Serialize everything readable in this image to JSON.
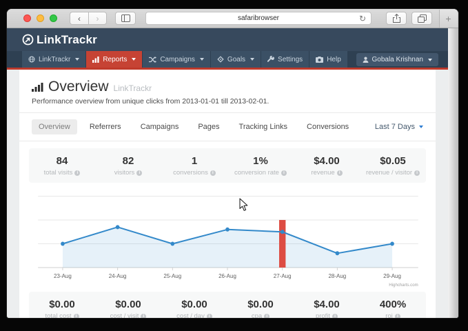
{
  "colors": {
    "nav-bg": "#37495d",
    "menu-bg": "#2e4052",
    "menu-item-bg": "#3b5065",
    "active-red": "#c64334",
    "nav-border-red": "#bf3a2b",
    "panel-gray": "#f7f8f8"
  },
  "browser": {
    "url_text": "safaribrowser",
    "new_tab_label": "+"
  },
  "nav": {
    "logo": "LinkTrackr",
    "menu": [
      {
        "label": "LinkTrackr",
        "icon": "globe-icon",
        "dropdown": true,
        "active": false
      },
      {
        "label": "Reports",
        "icon": "bar-chart-icon",
        "dropdown": true,
        "active": true
      },
      {
        "label": "Campaigns",
        "icon": "shuffle-icon",
        "dropdown": true,
        "active": false
      },
      {
        "label": "Goals",
        "icon": "diamond-icon",
        "dropdown": true,
        "active": false
      },
      {
        "label": "Settings",
        "icon": "wrench-icon",
        "dropdown": false,
        "active": false
      },
      {
        "label": "Help",
        "icon": "camera-icon",
        "dropdown": false,
        "active": false
      }
    ],
    "user": "Gobala Krishnan"
  },
  "header": {
    "title": "Overview",
    "title_suffix": "LinkTrackr",
    "subtitle": "Performance overview from unique clicks from 2013-01-01 till 2013-02-01."
  },
  "tabs": {
    "items": [
      "Overview",
      "Referrers",
      "Campaigns",
      "Pages",
      "Tracking Links",
      "Conversions"
    ],
    "active": "Overview",
    "range_selector": "Last 7 Days"
  },
  "stats_top": [
    {
      "value": "84",
      "label": "total visits"
    },
    {
      "value": "82",
      "label": "visitors"
    },
    {
      "value": "1",
      "label": "conversions"
    },
    {
      "value": "1%",
      "label": "conversion rate"
    },
    {
      "value": "$4.00",
      "label": "revenue"
    },
    {
      "value": "$0.05",
      "label": "revenue / visitor"
    }
  ],
  "stats_bottom": [
    {
      "value": "$0.00",
      "label": "total cost"
    },
    {
      "value": "$0.00",
      "label": "cost / visit"
    },
    {
      "value": "$0.00",
      "label": "cost / day"
    },
    {
      "value": "$0.00",
      "label": "cpa"
    },
    {
      "value": "$4.00",
      "label": "profit"
    },
    {
      "value": "400%",
      "label": "roi"
    }
  ],
  "chart_data": {
    "type": "line",
    "title": "",
    "x": [
      "23-Aug",
      "24-Aug",
      "25-Aug",
      "26-Aug",
      "27-Aug",
      "28-Aug",
      "29-Aug"
    ],
    "series": [
      {
        "name": "visits",
        "type": "area-line",
        "color": "#3389ca",
        "fill": "rgba(51,137,202,0.12)",
        "values": [
          10,
          17,
          10,
          16,
          15,
          6,
          10
        ]
      },
      {
        "name": "highlight-column",
        "type": "bar",
        "color": "#dd4c43",
        "x": "27-Aug",
        "value": 20
      }
    ],
    "ylim": [
      0,
      30
    ],
    "gridlines": [
      0,
      10,
      20,
      30
    ],
    "legend": "none",
    "credit": "Highcharts.com"
  }
}
